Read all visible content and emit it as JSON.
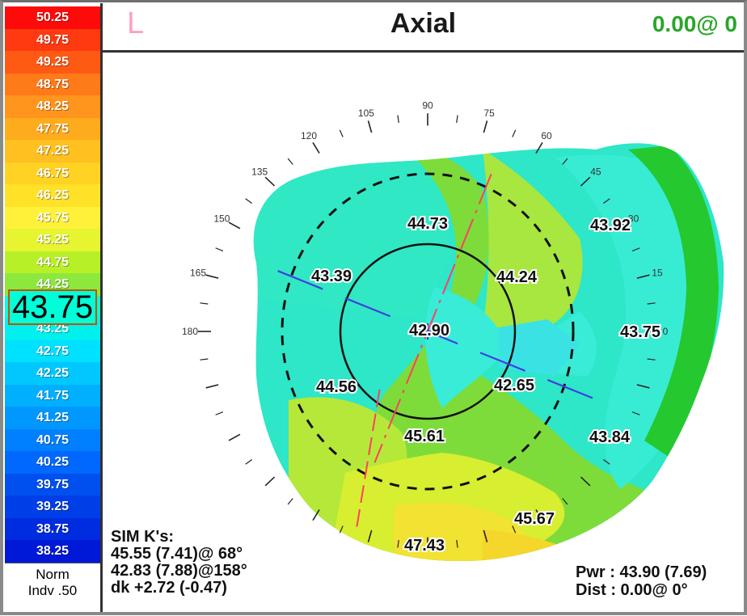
{
  "header": {
    "eye": "L",
    "title": "Axial",
    "readout": "0.00@  0"
  },
  "legend": {
    "values": [
      "50.25",
      "49.75",
      "49.25",
      "48.75",
      "48.25",
      "47.75",
      "47.25",
      "46.75",
      "46.25",
      "45.75",
      "45.25",
      "44.75",
      "44.25",
      "43.75",
      "43.25",
      "42.75",
      "42.25",
      "41.75",
      "41.25",
      "40.75",
      "40.25",
      "39.75",
      "39.25",
      "38.75",
      "38.25"
    ],
    "colors": [
      "#ff0a0a",
      "#ff3a10",
      "#ff5a14",
      "#ff7a18",
      "#ff951c",
      "#ffab1e",
      "#ffc020",
      "#ffd224",
      "#ffe128",
      "#fff03a",
      "#e6f530",
      "#b8f028",
      "#8ce83c",
      "#00ffd8",
      "#00f0ee",
      "#00e0ff",
      "#00c8ff",
      "#00b0ff",
      "#0098ff",
      "#0080ff",
      "#0068ff",
      "#0050f0",
      "#003ee8",
      "#002ce0",
      "#0018d8"
    ],
    "selected": "43.75",
    "footer_line1": "Norm",
    "footer_line2": "Indv .50"
  },
  "chart_data": {
    "type": "heatmap",
    "title": "Axial",
    "eye": "L",
    "unit": "D",
    "angle_labels": [
      "90",
      "75",
      "60",
      "45",
      "30",
      "15",
      "0",
      "105",
      "120",
      "135",
      "150",
      "165",
      "180"
    ],
    "values": [
      {
        "label": "44.73",
        "region": "upper-center"
      },
      {
        "label": "43.92",
        "region": "upper-right"
      },
      {
        "label": "43.39",
        "region": "upper-left"
      },
      {
        "label": "44.24",
        "region": "center-right"
      },
      {
        "label": "42.90",
        "region": "center"
      },
      {
        "label": "43.75",
        "region": "right"
      },
      {
        "label": "44.56",
        "region": "lower-left"
      },
      {
        "label": "42.65",
        "region": "lower-center-right"
      },
      {
        "label": "45.61",
        "region": "lower-center"
      },
      {
        "label": "43.84",
        "region": "lower-right"
      },
      {
        "label": "45.67",
        "region": "bottom-right"
      },
      {
        "label": "47.43",
        "region": "bottom"
      }
    ],
    "sim_k": {
      "heading": "SIM K's:",
      "line1": "45.55 (7.41)@ 68°",
      "line2": "42.83 (7.88)@158°",
      "line3": "dk +2.72 (-0.47)"
    },
    "pwr": "Pwr :  43.90 (7.69)",
    "dist": "Dist :  0.00@  0°"
  }
}
